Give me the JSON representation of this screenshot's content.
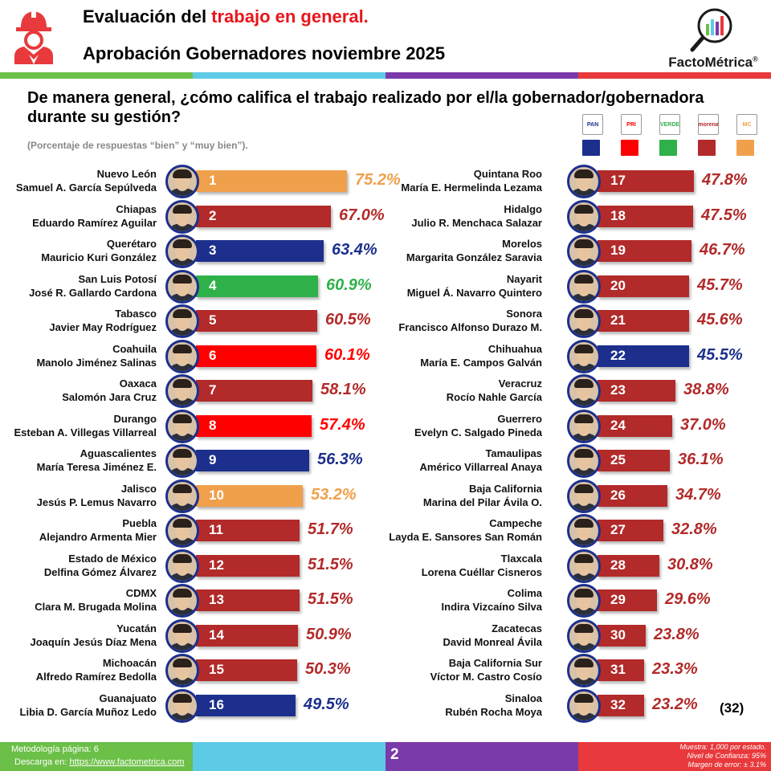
{
  "header": {
    "title_prefix": "Evaluación del ",
    "title_accent": "trabajo en general.",
    "subtitle": "Aprobación Gobernadores noviembre 2025",
    "logo_text": "FactoMétrica",
    "logo_registered": "®"
  },
  "question": "De manera general, ¿cómo califica el trabajo realizado por el/la gobernador/gobernadora durante su gestión?",
  "note": "(Porcentaje de respuestas “bien” y “muy bien”).",
  "parties": [
    {
      "name": "PAN",
      "color": "#1c2f8c"
    },
    {
      "name": "PRI",
      "color": "#ff0000"
    },
    {
      "name": "VERDE",
      "color": "#2fb14a"
    },
    {
      "name": "morena",
      "color": "#b22a2a"
    },
    {
      "name": "MC",
      "color": "#f0a04b"
    }
  ],
  "count_label": "(32)",
  "chart_data": {
    "type": "bar",
    "title": "Aprobación Gobernadores noviembre 2025",
    "unit": "%",
    "xlim": [
      0,
      80
    ],
    "items": [
      {
        "rank": "1",
        "state": "Nuevo León",
        "governor": "Samuel A. García Sepúlveda",
        "value": 75.2,
        "label": "75.2%",
        "party": "MC"
      },
      {
        "rank": "2",
        "state": "Chiapas",
        "governor": "Eduardo Ramírez Aguilar",
        "value": 67.0,
        "label": "67.0%",
        "party": "morena"
      },
      {
        "rank": "3",
        "state": "Querétaro",
        "governor": "Mauricio Kuri González",
        "value": 63.4,
        "label": "63.4%",
        "party": "PAN"
      },
      {
        "rank": "4",
        "state": "San Luis Potosí",
        "governor": "José R. Gallardo Cardona",
        "value": 60.9,
        "label": "60.9%",
        "party": "VERDE"
      },
      {
        "rank": "5",
        "state": "Tabasco",
        "governor": "Javier May Rodríguez",
        "value": 60.5,
        "label": "60.5%",
        "party": "morena"
      },
      {
        "rank": "6",
        "state": "Coahuila",
        "governor": "Manolo Jiménez Salinas",
        "value": 60.1,
        "label": "60.1%",
        "party": "PRI"
      },
      {
        "rank": "7",
        "state": "Oaxaca",
        "governor": "Salomón Jara Cruz",
        "value": 58.1,
        "label": "58.1%",
        "party": "morena"
      },
      {
        "rank": "8",
        "state": "Durango",
        "governor": "Esteban A. Villegas Villarreal",
        "value": 57.4,
        "label": "57.4%",
        "party": "PRI"
      },
      {
        "rank": "9",
        "state": "Aguascalientes",
        "governor": "María Teresa Jiménez E.",
        "value": 56.3,
        "label": "56.3%",
        "party": "PAN"
      },
      {
        "rank": "10",
        "state": "Jalisco",
        "governor": "Jesús P. Lemus Navarro",
        "value": 53.2,
        "label": "53.2%",
        "party": "MC"
      },
      {
        "rank": "11",
        "state": "Puebla",
        "governor": "Alejandro Armenta Mier",
        "value": 51.7,
        "label": "51.7%",
        "party": "morena"
      },
      {
        "rank": "12",
        "state": "Estado de México",
        "governor": "Delfina Gómez Álvarez",
        "value": 51.5,
        "label": "51.5%",
        "party": "morena"
      },
      {
        "rank": "13",
        "state": "CDMX",
        "governor": "Clara M. Brugada Molina",
        "value": 51.5,
        "label": "51.5%",
        "party": "morena"
      },
      {
        "rank": "14",
        "state": "Yucatán",
        "governor": "Joaquín Jesús Díaz Mena",
        "value": 50.9,
        "label": "50.9%",
        "party": "morena"
      },
      {
        "rank": "15",
        "state": "Michoacán",
        "governor": "Alfredo Ramírez Bedolla",
        "value": 50.3,
        "label": "50.3%",
        "party": "morena"
      },
      {
        "rank": "16",
        "state": "Guanajuato",
        "governor": "Libia D. García Muñoz Ledo",
        "value": 49.5,
        "label": "49.5%",
        "party": "PAN"
      },
      {
        "rank": "17",
        "state": "Quintana Roo",
        "governor": "María E. Hermelinda Lezama",
        "value": 47.8,
        "label": "47.8%",
        "party": "morena"
      },
      {
        "rank": "18",
        "state": "Hidalgo",
        "governor": "Julio R. Menchaca Salazar",
        "value": 47.5,
        "label": "47.5%",
        "party": "morena"
      },
      {
        "rank": "19",
        "state": "Morelos",
        "governor": "Margarita González Saravia",
        "value": 46.7,
        "label": "46.7%",
        "party": "morena"
      },
      {
        "rank": "20",
        "state": "Nayarit",
        "governor": "Miguel Á. Navarro Quintero",
        "value": 45.7,
        "label": "45.7%",
        "party": "morena"
      },
      {
        "rank": "21",
        "state": "Sonora",
        "governor": "Francisco Alfonso Durazo M.",
        "value": 45.6,
        "label": "45.6%",
        "party": "morena"
      },
      {
        "rank": "22",
        "state": "Chihuahua",
        "governor": "María E. Campos Galván",
        "value": 45.5,
        "label": "45.5%",
        "party": "PAN"
      },
      {
        "rank": "23",
        "state": "Veracruz",
        "governor": "Rocío Nahle García",
        "value": 38.8,
        "label": "38.8%",
        "party": "morena"
      },
      {
        "rank": "24",
        "state": "Guerrero",
        "governor": "Evelyn C. Salgado Pineda",
        "value": 37.0,
        "label": "37.0%",
        "party": "morena"
      },
      {
        "rank": "25",
        "state": "Tamaulipas",
        "governor": "Américo Villarreal Anaya",
        "value": 36.1,
        "label": "36.1%",
        "party": "morena"
      },
      {
        "rank": "26",
        "state": "Baja California",
        "governor": "Marina del Pilar Ávila O.",
        "value": 34.7,
        "label": "34.7%",
        "party": "morena"
      },
      {
        "rank": "27",
        "state": "Campeche",
        "governor": "Layda E. Sansores San Román",
        "value": 32.8,
        "label": "32.8%",
        "party": "morena"
      },
      {
        "rank": "28",
        "state": "Tlaxcala",
        "governor": "Lorena Cuéllar Cisneros",
        "value": 30.8,
        "label": "30.8%",
        "party": "morena"
      },
      {
        "rank": "29",
        "state": "Colima",
        "governor": "Indira Vizcaíno Silva",
        "value": 29.6,
        "label": "29.6%",
        "party": "morena"
      },
      {
        "rank": "30",
        "state": "Zacatecas",
        "governor": "David Monreal Ávila",
        "value": 23.8,
        "label": "23.8%",
        "party": "morena"
      },
      {
        "rank": "31",
        "state": "Baja California Sur",
        "governor": "Víctor M. Castro Cosío",
        "value": 23.3,
        "label": "23.3%",
        "party": "morena"
      },
      {
        "rank": "32",
        "state": "Sinaloa",
        "governor": "Rubén Rocha Moya",
        "value": 23.2,
        "label": "23.2%",
        "party": "morena"
      }
    ]
  },
  "footer": {
    "methodology": "Metodología página: 6",
    "download_prefix": "Descarga en: ",
    "download_link": "https://www.factometrica.com",
    "page_number": "2",
    "sample": "Muestra:  1,000 por estado.",
    "confidence": "Nivel de Confianza: 95%",
    "margin": "Margen de error: ± 3.1%"
  },
  "colors": {
    "strip": [
      "#6cbf47",
      "#5dcbe5",
      "#7b3aa9",
      "#e8393c"
    ]
  }
}
